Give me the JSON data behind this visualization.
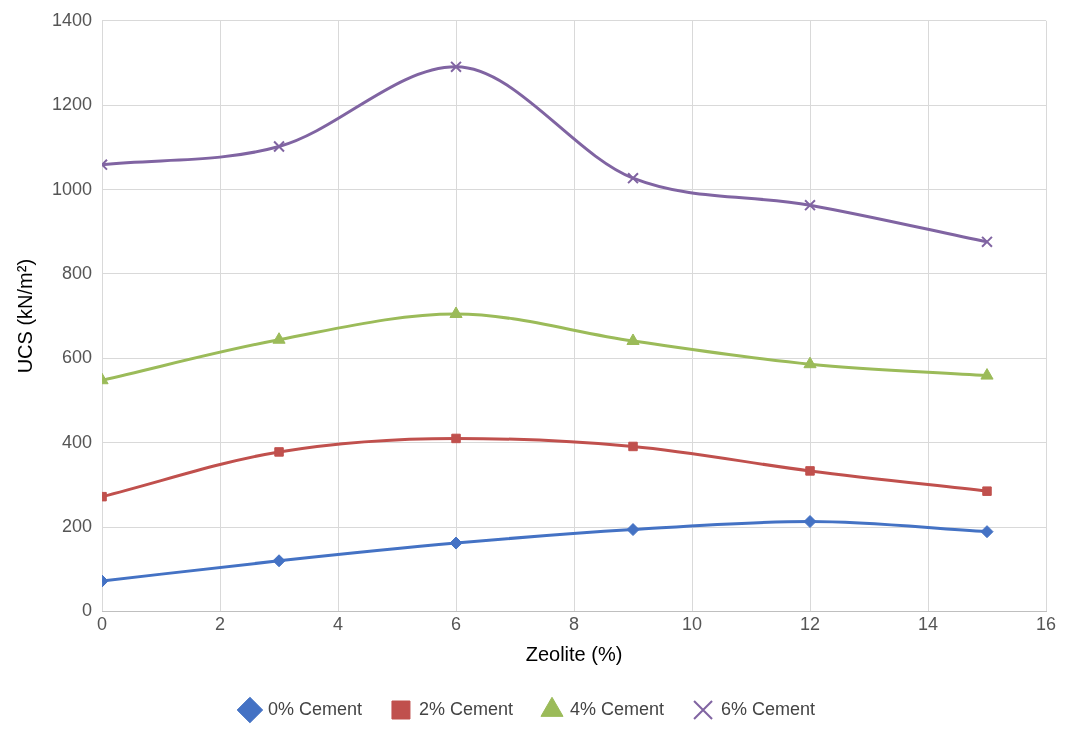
{
  "chart_data": {
    "type": "line",
    "xlabel": "Zeolite (%)",
    "ylabel": "UCS (kN/m²)",
    "x": [
      0,
      3,
      6,
      9,
      12,
      15
    ],
    "xlim": [
      0,
      16
    ],
    "xticks": [
      0,
      2,
      4,
      6,
      8,
      10,
      12,
      14,
      16
    ],
    "ylim": [
      0,
      1400
    ],
    "yticks": [
      0,
      200,
      400,
      600,
      800,
      1000,
      1200,
      1400
    ],
    "grid": true,
    "legend": "bottom",
    "series": [
      {
        "name": "0% Cement",
        "color": "#4472c4",
        "marker": "diamond",
        "values": [
          72,
          120,
          162,
          194,
          213,
          189
        ]
      },
      {
        "name": "2% Cement",
        "color": "#c0504d",
        "marker": "square",
        "values": [
          272,
          378,
          410,
          391,
          333,
          285
        ]
      },
      {
        "name": "4% Cement",
        "color": "#9bbb59",
        "marker": "triangle",
        "values": [
          548,
          644,
          705,
          641,
          586,
          559
        ]
      },
      {
        "name": "6% Cement",
        "color": "#8064a2",
        "marker": "cross",
        "values": [
          1059,
          1102,
          1291,
          1027,
          963,
          876
        ]
      }
    ]
  }
}
